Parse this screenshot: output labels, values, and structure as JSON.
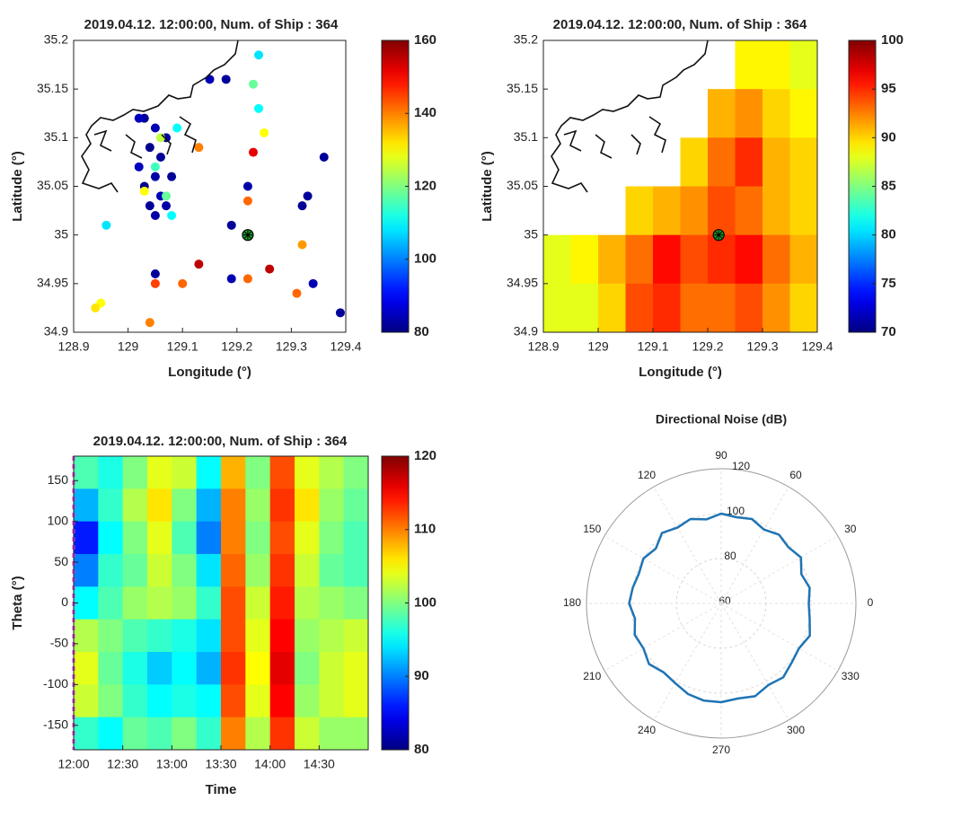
{
  "chart_data": [
    {
      "type": "scatter",
      "title": "2019.04.12. 12:00:00, Num. of Ship :  364",
      "xlabel": "Longitude (°)",
      "ylabel": "Latitude (°)",
      "xlim": [
        128.9,
        129.4
      ],
      "ylim": [
        34.9,
        35.2
      ],
      "xticks": [
        128.9,
        129,
        129.1,
        129.2,
        129.3,
        129.4
      ],
      "yticks": [
        34.9,
        34.95,
        35,
        35.05,
        35.1,
        35.15,
        35.2
      ],
      "clim": [
        80,
        160
      ],
      "cticks": [
        80,
        100,
        120,
        140,
        160
      ],
      "series": [
        {
          "x": [
            129.03,
            129.05,
            129.07,
            129.04,
            129.06,
            129.02,
            129.05,
            129.08,
            129.03,
            129.06,
            129.04,
            129.07,
            129.02,
            129.05,
            129.09,
            129.06,
            129.05,
            129.03,
            129.07,
            129.15,
            129.18,
            129.24,
            129.23,
            129.24,
            129.25,
            129.13,
            129.23,
            129.36,
            129.22,
            129.22,
            129.33,
            129.32,
            129.19,
            129.32,
            129.08,
            128.96,
            129.05,
            129.05,
            129.1,
            129.13,
            129.19,
            129.22,
            129.26,
            129.31,
            129.34,
            129.39,
            128.95,
            128.94,
            129.04
          ],
          "y": [
            35.12,
            35.11,
            35.1,
            35.09,
            35.08,
            35.07,
            35.06,
            35.06,
            35.05,
            35.04,
            35.03,
            35.03,
            35.12,
            35.02,
            35.11,
            35.1,
            35.07,
            35.045,
            35.04,
            35.16,
            35.16,
            35.185,
            35.155,
            35.13,
            35.105,
            35.09,
            35.085,
            35.08,
            35.05,
            35.035,
            35.04,
            35.03,
            35.01,
            34.99,
            35.02,
            35.01,
            34.96,
            34.95,
            34.95,
            34.97,
            34.955,
            34.955,
            34.965,
            34.94,
            34.95,
            34.92,
            34.93,
            34.925,
            34.91
          ],
          "values": [
            82,
            84,
            83,
            81,
            82,
            85,
            83,
            82,
            81,
            84,
            82,
            83,
            85,
            83,
            110,
            125,
            115,
            130,
            118,
            84,
            82,
            108,
            118,
            110,
            130,
            140,
            152,
            82,
            83,
            142,
            82,
            82,
            82,
            138,
            110,
            108,
            82,
            145,
            142,
            155,
            84,
            142,
            155,
            142,
            84,
            82,
            130,
            132,
            140
          ]
        }
      ],
      "receiver": {
        "x": 129.22,
        "y": 35.0
      }
    },
    {
      "type": "heatmap",
      "title": "2019.04.12. 12:00:00, Num. of Ship :  364",
      "xlabel": "Longitude (°)",
      "ylabel": "Latitude (°)",
      "xlim": [
        128.9,
        129.4
      ],
      "ylim": [
        34.9,
        35.2
      ],
      "xticks": [
        128.9,
        129,
        129.1,
        129.2,
        129.3,
        129.4
      ],
      "yticks": [
        34.9,
        34.95,
        35,
        35.05,
        35.1,
        35.15,
        35.2
      ],
      "clim": [
        70,
        100
      ],
      "cticks": [
        70,
        75,
        80,
        85,
        90,
        95,
        100
      ],
      "x": [
        128.925,
        128.975,
        129.025,
        129.075,
        129.125,
        129.175,
        129.225,
        129.275,
        129.325,
        129.375
      ],
      "y": [
        35.175,
        35.125,
        35.075,
        35.025,
        34.975,
        34.925
      ],
      "z": [
        [
          null,
          null,
          null,
          null,
          null,
          null,
          null,
          89,
          89,
          88
        ],
        [
          null,
          null,
          null,
          null,
          null,
          null,
          91,
          92,
          90,
          89
        ],
        [
          null,
          null,
          null,
          null,
          null,
          90,
          93,
          95,
          91,
          90
        ],
        [
          null,
          null,
          null,
          90,
          91,
          92,
          94,
          93,
          91,
          90
        ],
        [
          88,
          89,
          91,
          93,
          96,
          94,
          95,
          96,
          93,
          91
        ],
        [
          88,
          88,
          90,
          94,
          95,
          93,
          93,
          94,
          92,
          90
        ]
      ],
      "receiver": {
        "x": 129.22,
        "y": 35.0
      }
    },
    {
      "type": "heatmap",
      "title": "2019.04.12. 12:00:00, Num. of Ship :  364",
      "xlabel": "Time",
      "ylabel": "Theta (°)",
      "xlim": [
        0,
        180
      ],
      "ylim": [
        -180,
        180
      ],
      "xticks": [
        {
          "value": 0,
          "label": "12:00"
        },
        {
          "value": 30,
          "label": "12:30"
        },
        {
          "value": 60,
          "label": "13:00"
        },
        {
          "value": 90,
          "label": "13:30"
        },
        {
          "value": 120,
          "label": "14:00"
        },
        {
          "value": 150,
          "label": "14:30"
        }
      ],
      "yticks": [
        -150,
        -100,
        -50,
        0,
        50,
        100,
        150
      ],
      "clim": [
        80,
        120
      ],
      "cticks": [
        80,
        90,
        100,
        110,
        120
      ],
      "x": [
        7.5,
        22.5,
        37.5,
        52.5,
        67.5,
        82.5,
        97.5,
        112.5,
        127.5,
        142.5,
        157.5,
        172.5
      ],
      "y": [
        160,
        120,
        80,
        40,
        0,
        -40,
        -80,
        -120,
        -160
      ],
      "z": [
        [
          98,
          96,
          100,
          104,
          103,
          95,
          108,
          100,
          112,
          104,
          102,
          100
        ],
        [
          92,
          97,
          102,
          106,
          100,
          92,
          110,
          101,
          113,
          106,
          101,
          99
        ],
        [
          86,
          95,
          100,
          104,
          98,
          90,
          110,
          100,
          112,
          104,
          100,
          98
        ],
        [
          90,
          97,
          99,
          103,
          100,
          94,
          111,
          101,
          113,
          103,
          99,
          98
        ],
        [
          95,
          98,
          101,
          102,
          101,
          97,
          112,
          103,
          114,
          102,
          101,
          100
        ],
        [
          102,
          100,
          98,
          97,
          96,
          94,
          112,
          104,
          115,
          101,
          102,
          103
        ],
        [
          104,
          99,
          96,
          93,
          95,
          92,
          113,
          105,
          116,
          100,
          103,
          104
        ],
        [
          103,
          100,
          97,
          95,
          96,
          95,
          112,
          104,
          115,
          101,
          103,
          104
        ],
        [
          97,
          95,
          99,
          98,
          100,
          97,
          110,
          102,
          113,
          103,
          101,
          101
        ]
      ]
    },
    {
      "type": "polar",
      "title": "Directional Noise (dB)",
      "color": "#1f74b4",
      "rlim": [
        60,
        120
      ],
      "rticks": [
        60,
        80,
        100,
        120
      ],
      "thetaticks": [
        0,
        30,
        60,
        90,
        120,
        150,
        180,
        210,
        240,
        270,
        300,
        330
      ],
      "theta": [
        0,
        10,
        20,
        30,
        40,
        50,
        60,
        70,
        80,
        90,
        100,
        110,
        120,
        130,
        140,
        150,
        160,
        170,
        180,
        190,
        200,
        210,
        220,
        230,
        240,
        250,
        260,
        270,
        280,
        290,
        300,
        310,
        320,
        330,
        340,
        350
      ],
      "values": [
        99,
        100,
        98,
        101,
        99,
        100,
        98,
        100,
        99,
        100,
        98,
        100,
        99,
        101,
        98,
        100,
        99,
        100,
        101,
        99,
        101,
        100,
        102,
        100,
        101,
        103,
        104,
        104,
        103,
        104,
        102,
        103,
        101,
        100,
        102,
        100
      ]
    }
  ]
}
